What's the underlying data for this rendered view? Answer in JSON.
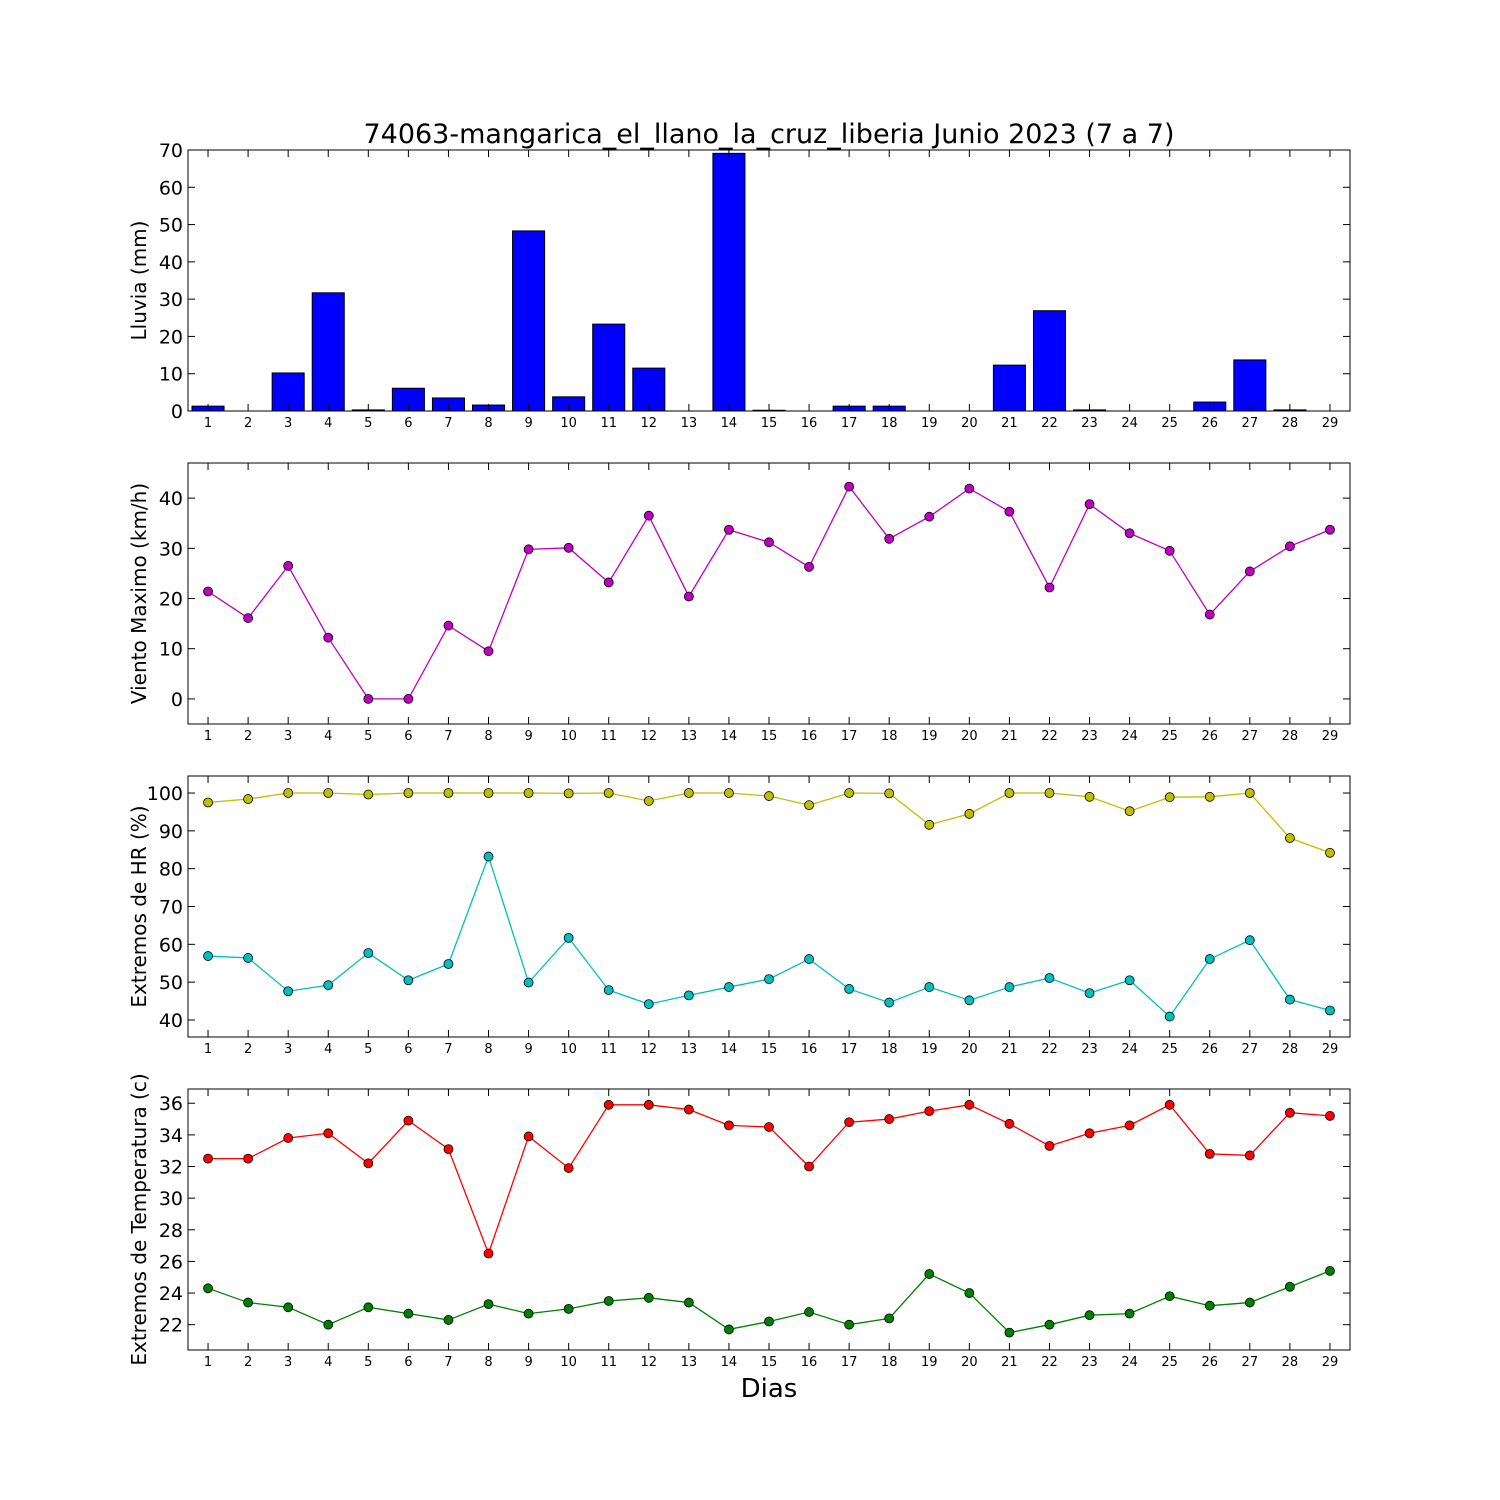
{
  "figure": {
    "title": "74063-mangarica_el_llano_la_cruz_liberia Junio 2023  (7 a 7)",
    "xlabel": "Dias"
  },
  "chart_data": [
    {
      "type": "bar",
      "ylabel": "Lluvia (mm)",
      "ylim": [
        0,
        70
      ],
      "yticks": [
        0,
        10,
        20,
        30,
        40,
        50,
        60,
        70
      ],
      "xlim": [
        0.5,
        29.5
      ],
      "x": [
        1,
        2,
        3,
        4,
        5,
        6,
        7,
        8,
        9,
        10,
        11,
        12,
        13,
        14,
        15,
        16,
        17,
        18,
        19,
        20,
        21,
        22,
        23,
        24,
        25,
        26,
        27,
        28,
        29
      ],
      "series": [
        {
          "color": "#0000ff",
          "values": [
            1.3,
            0,
            10.2,
            31.7,
            0.3,
            6.1,
            3.5,
            1.6,
            48.3,
            3.8,
            23.3,
            11.5,
            0,
            69.1,
            0.2,
            0,
            1.3,
            1.3,
            0,
            0,
            12.3,
            26.9,
            0.3,
            0,
            0,
            2.4,
            13.7,
            0.3,
            0
          ]
        }
      ]
    },
    {
      "type": "line",
      "ylabel": "Viento Maximo (km/h)",
      "ylim": [
        -5,
        47
      ],
      "yticks": [
        0,
        10,
        20,
        30,
        40
      ],
      "xlim": [
        0.5,
        29.5
      ],
      "x": [
        1,
        2,
        3,
        4,
        5,
        6,
        7,
        8,
        9,
        10,
        11,
        12,
        13,
        14,
        15,
        16,
        17,
        18,
        19,
        20,
        21,
        22,
        23,
        24,
        25,
        26,
        27,
        28,
        29
      ],
      "series": [
        {
          "color": "#bf00bf",
          "values": [
            21.4,
            16.1,
            26.5,
            12.2,
            0,
            0,
            14.6,
            9.5,
            29.8,
            30.1,
            23.2,
            36.5,
            20.4,
            33.7,
            31.2,
            26.3,
            42.3,
            31.9,
            36.3,
            41.9,
            37.3,
            22.2,
            38.8,
            33.0,
            29.5,
            16.8,
            25.4,
            30.4,
            33.7
          ]
        }
      ]
    },
    {
      "type": "line",
      "ylabel": "Extremos de HR (%)",
      "ylim": [
        35.5,
        104.5
      ],
      "yticks": [
        40,
        50,
        60,
        70,
        80,
        90,
        100
      ],
      "xlim": [
        0.5,
        29.5
      ],
      "x": [
        1,
        2,
        3,
        4,
        5,
        6,
        7,
        8,
        9,
        10,
        11,
        12,
        13,
        14,
        15,
        16,
        17,
        18,
        19,
        20,
        21,
        22,
        23,
        24,
        25,
        26,
        27,
        28,
        29
      ],
      "series": [
        {
          "color": "#bfbf00",
          "values": [
            97.5,
            98.4,
            100,
            100,
            99.6,
            100,
            100,
            100,
            100,
            99.9,
            100,
            97.9,
            100,
            100,
            99.2,
            96.8,
            100,
            99.9,
            91.6,
            94.5,
            100,
            100,
            99.0,
            95.2,
            98.9,
            99.0,
            100,
            88.1,
            84.2
          ]
        },
        {
          "color": "#00bfbf",
          "values": [
            56.9,
            56.4,
            47.6,
            49.2,
            57.7,
            50.5,
            54.8,
            83.2,
            49.9,
            61.7,
            47.9,
            44.2,
            46.5,
            48.7,
            50.8,
            56.1,
            48.2,
            44.6,
            48.7,
            45.2,
            48.7,
            51.1,
            47.1,
            50.5,
            40.9,
            56.1,
            61.1,
            45.4,
            42.5
          ]
        }
      ]
    },
    {
      "type": "line",
      "ylabel": "Extremos de Temperatura (c)",
      "ylim": [
        20.4,
        36.9
      ],
      "yticks": [
        22,
        24,
        26,
        28,
        30,
        32,
        34,
        36
      ],
      "xlim": [
        0.5,
        29.5
      ],
      "x": [
        1,
        2,
        3,
        4,
        5,
        6,
        7,
        8,
        9,
        10,
        11,
        12,
        13,
        14,
        15,
        16,
        17,
        18,
        19,
        20,
        21,
        22,
        23,
        24,
        25,
        26,
        27,
        28,
        29
      ],
      "series": [
        {
          "color": "#ff0000",
          "values": [
            32.5,
            32.5,
            33.8,
            34.1,
            32.2,
            34.9,
            33.1,
            26.5,
            33.9,
            31.9,
            35.9,
            35.9,
            35.6,
            34.6,
            34.5,
            32.0,
            34.8,
            35.0,
            35.5,
            35.9,
            34.7,
            33.3,
            34.1,
            34.6,
            35.9,
            32.8,
            32.7,
            35.4,
            35.2
          ]
        },
        {
          "color": "#008000",
          "values": [
            24.3,
            23.4,
            23.1,
            22.0,
            23.1,
            22.7,
            22.3,
            23.3,
            22.7,
            23.0,
            23.5,
            23.7,
            23.4,
            21.7,
            22.2,
            22.8,
            22.0,
            22.4,
            25.2,
            24.0,
            21.5,
            22.0,
            22.6,
            22.7,
            23.8,
            23.2,
            23.4,
            24.4,
            25.4
          ]
        }
      ]
    }
  ]
}
